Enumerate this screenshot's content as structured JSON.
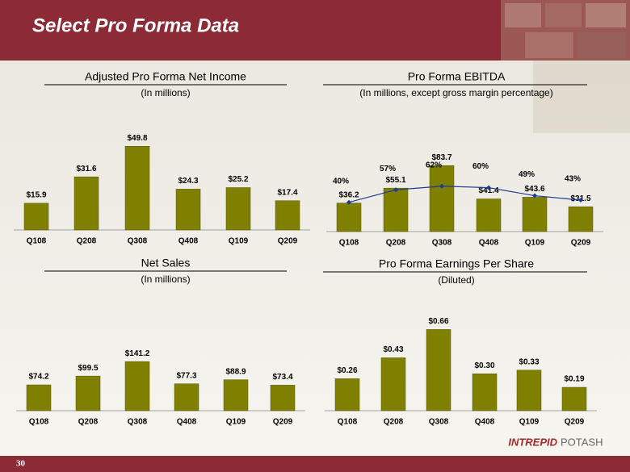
{
  "slide": {
    "title": "Select Pro Forma Data",
    "page_number": "30",
    "logo": [
      "INTREPID",
      "POTASH"
    ]
  },
  "chart_data": [
    {
      "type": "bar",
      "title": "Adjusted Pro Forma Net Income",
      "subtitle": "(In millions)",
      "categories": [
        "Q108",
        "Q208",
        "Q308",
        "Q408",
        "Q109",
        "Q209"
      ],
      "values": [
        15.9,
        31.6,
        49.8,
        24.3,
        25.2,
        17.4
      ],
      "value_labels": [
        "$15.9",
        "$31.6",
        "$49.8",
        "$24.3",
        "$25.2",
        "$17.4"
      ],
      "color": "#808000",
      "ylim": [
        0,
        60
      ]
    },
    {
      "type": "bar",
      "title": "Pro Forma EBITDA",
      "subtitle": "(In millions, except gross margin percentage)",
      "categories": [
        "Q108",
        "Q208",
        "Q308",
        "Q408",
        "Q109",
        "Q209"
      ],
      "series": [
        {
          "type": "bar",
          "color": "#808000",
          "values": [
            36.2,
            55.1,
            83.7,
            41.4,
            43.6,
            31.5
          ],
          "value_labels": [
            "$36.2",
            "$55.1",
            "$83.7",
            "$41.4",
            "$43.6",
            "$31.5"
          ]
        },
        {
          "type": "line",
          "axis": "y2",
          "color": "#1f3a93",
          "values": [
            40,
            57,
            62,
            60,
            49,
            43
          ],
          "value_labels": [
            "40%",
            "57%",
            "62%",
            "60%",
            "49%",
            "43%"
          ]
        }
      ],
      "ylim": [
        0,
        130
      ],
      "y2lim": [
        0,
        140
      ]
    },
    {
      "type": "bar",
      "title": "Net Sales",
      "subtitle": "(In millions)",
      "categories": [
        "Q108",
        "Q208",
        "Q308",
        "Q408",
        "Q109",
        "Q209"
      ],
      "values": [
        74.2,
        99.5,
        141.2,
        77.3,
        88.9,
        73.4
      ],
      "value_labels": [
        "$74.2",
        "$99.5",
        "$141.2",
        "$77.3",
        "$88.9",
        "$73.4"
      ],
      "color": "#808000",
      "ylim": [
        0,
        290
      ]
    },
    {
      "type": "bar",
      "title": "Pro Forma Earnings Per Share",
      "subtitle": "(Diluted)",
      "categories": [
        "Q108",
        "Q208",
        "Q308",
        "Q408",
        "Q109",
        "Q209"
      ],
      "values": [
        0.26,
        0.43,
        0.66,
        0.3,
        0.33,
        0.19
      ],
      "value_labels": [
        "$0.26",
        "$0.43",
        "$0.66",
        "$0.30",
        "$0.33",
        "$0.19"
      ],
      "color": "#808000",
      "ylim": [
        0,
        0.82
      ]
    }
  ]
}
